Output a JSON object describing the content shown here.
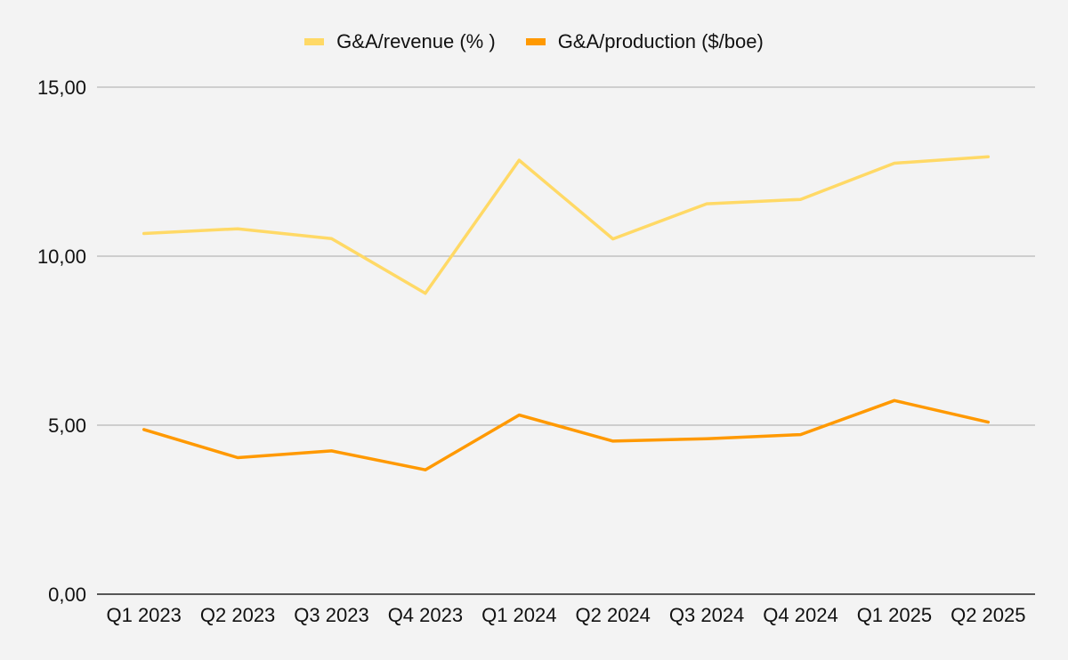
{
  "chart_data": {
    "type": "line",
    "title": "",
    "xlabel": "",
    "ylabel": "",
    "categories": [
      "Q1 2023",
      "Q2 2023",
      "Q3 2023",
      "Q4 2023",
      "Q1 2024",
      "Q2 2024",
      "Q3 2024",
      "Q4 2024",
      "Q1 2025",
      "Q2 2025"
    ],
    "ylim": [
      0,
      15
    ],
    "yticks": [
      0,
      5,
      10,
      15
    ],
    "ytick_labels": [
      "0,00",
      "5,00",
      "10,00",
      "15,00"
    ],
    "grid": true,
    "legend_position": "top-center",
    "series": [
      {
        "name": "G&A/revenue (% )",
        "color": "#ffd966",
        "values": [
          10.67,
          10.81,
          10.52,
          8.9,
          12.84,
          10.51,
          11.55,
          11.68,
          12.75,
          12.94
        ]
      },
      {
        "name": "G&A/production ($/boe)",
        "color": "#ff9900",
        "values": [
          4.87,
          4.04,
          4.24,
          3.68,
          5.3,
          4.53,
          4.6,
          4.72,
          5.73,
          5.09
        ]
      }
    ]
  }
}
